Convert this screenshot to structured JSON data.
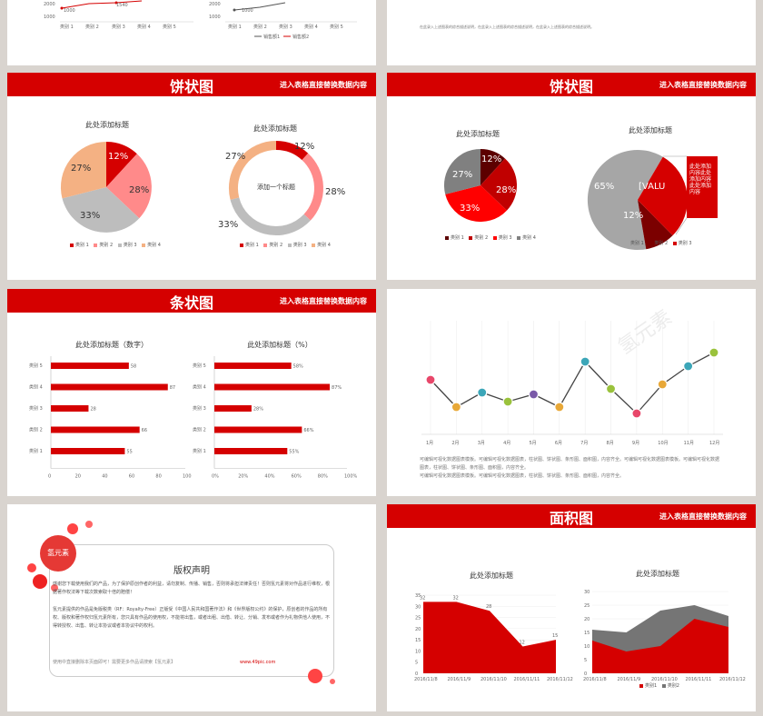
{
  "slides": {
    "pie_left": {
      "heading": "饼状图",
      "subtitle": "进入表格直接替换数据内容",
      "chart1_title": "此处添加标题",
      "chart2_title": "此处添加标题",
      "donut_center": "添加一个标题"
    },
    "pie_right": {
      "heading": "饼状图",
      "subtitle": "进入表格直接替换数据内容",
      "chart1_title": "此处添加标题",
      "chart2_title": "此处添加标题",
      "callout": "此处添加内容此处添加内容此处添加内容",
      "value_placeholder": "[VALU"
    },
    "bar_left": {
      "heading": "条状图",
      "subtitle": "进入表格直接替换数据内容",
      "chart1_title": "此处添加标题（数字）",
      "chart2_title": "此处添加标题（%）"
    },
    "line_right": {
      "caption1": "可编辑可视化数据图表模板。可编辑可视化数据图表，柱状图、饼状图、条形图、面积图，内容齐全。可编辑可视化数据图表模板。可编辑可视化数据图表，柱状图、饼状图、条形图、面积图，内容齐全。",
      "caption2": "可编辑可视化数据图表模板。可编辑可视化数据图表，柱状图、饼状图、条形图、面积图，内容齐全。"
    },
    "copyright": {
      "logo": "氢元素",
      "title": "版权声明",
      "p1": "感谢您下载使用我们的产品，为了保护原创作者的利益，请勿复制、传播、销售，否则将承担法律责任！否则氢元素将对作品进行维权，根据著作权法等下载次数索取十倍的赔偿！",
      "p2": "氢元素提供的作品是免版税类（RF：Royalty-Free）正版受《中国人民共和国著作法》和《世界版权公约》的保护，原创者的作品的所有权、版权和著作权归氢元素所有，您只具有作品的使用权，不能将出售，或者出租、出借、转让、分销、发布或者作为礼物供他人使用，不得转授权、出售、转让本协议或者本协议中的权利。",
      "footer": "使用中直接删除本页面即可！需要更多作品请搜索【氢元素】",
      "url": "www.49pic.com"
    },
    "area_right": {
      "heading": "面积图",
      "subtitle": "进入表格直接替换数据内容",
      "chart1_title": "此处添加标题",
      "chart2_title": "此处添加标题"
    },
    "top_left": {
      "legend": [
        "销售额1",
        "销售额2"
      ]
    },
    "top_right": {
      "caption": "在此录入上述图表的综合描述说明，在此录入上述图表的综合描述说明，在此录入上述图表的综合描述说明。"
    }
  },
  "watermark": "氢元素",
  "chart_data": [
    {
      "type": "line",
      "title": "",
      "categories": [
        "类别 1",
        "类别 2",
        "类别 3",
        "类别 4",
        "类别 5"
      ],
      "y_ticks": [
        "2000",
        "1000"
      ],
      "labels": [
        "1000",
        "1540"
      ]
    },
    {
      "type": "line",
      "title": "",
      "categories": [
        "类别 1",
        "类别 2",
        "类别 3",
        "类别 4",
        "类别 5"
      ],
      "y_ticks": [
        "2000",
        "1000"
      ],
      "labels": [
        "1000"
      ],
      "series": [
        {
          "name": "销售额1"
        },
        {
          "name": "销售额2"
        }
      ]
    },
    {
      "type": "pie",
      "title": "此处添加标题",
      "categories": [
        "类别 1",
        "类别 2",
        "类别 3",
        "类别 4"
      ],
      "values": [
        12,
        28,
        33,
        27
      ],
      "colors": [
        "#d50000",
        "#ff8a8a",
        "#bdbdbd",
        "#f4b183"
      ]
    },
    {
      "type": "pie",
      "title": "此处添加标题",
      "categories": [
        "类别 1",
        "类别 2",
        "类别 3",
        "类别 4"
      ],
      "values": [
        12,
        28,
        33,
        27
      ],
      "donut": true,
      "colors": [
        "#d50000",
        "#ff8a8a",
        "#bdbdbd",
        "#f4b183"
      ]
    },
    {
      "type": "pie",
      "title": "此处添加标题",
      "categories": [
        "类别 1",
        "类别 2",
        "类别 3",
        "类别 4"
      ],
      "values": [
        12,
        28,
        33,
        27
      ],
      "colors": [
        "#5c0000",
        "#c00000",
        "#ff0000",
        "#808080"
      ]
    },
    {
      "type": "pie",
      "title": "此处添加标题",
      "categories": [
        "类别 1",
        "类别 2",
        "类别 3"
      ],
      "values": [
        65,
        12,
        23
      ],
      "colors": [
        "#a6a6a6",
        "#7b0000",
        "#d50000"
      ],
      "labels": [
        "65%",
        "12%",
        "[VALU"
      ]
    },
    {
      "type": "bar",
      "title": "此处添加标题（数字）",
      "categories": [
        "类别 1",
        "类别 2",
        "类别 3",
        "类别 4",
        "类别 5"
      ],
      "values": [
        55,
        66,
        28,
        87,
        58
      ],
      "xlim": [
        0,
        100
      ],
      "x_ticks": [
        "0",
        "20",
        "40",
        "60",
        "80",
        "100"
      ]
    },
    {
      "type": "bar",
      "title": "此处添加标题（%）",
      "categories": [
        "类别 1",
        "类别 2",
        "类别 3",
        "类别 4",
        "类别 5"
      ],
      "values": [
        55,
        66,
        28,
        87,
        58
      ],
      "labels": [
        "55%",
        "66%",
        "28%",
        "87%",
        "58%"
      ],
      "xlim": [
        0,
        100
      ],
      "x_ticks": [
        "0%",
        "20%",
        "40%",
        "60%",
        "80%",
        "100%"
      ]
    },
    {
      "type": "line",
      "categories": [
        "1月",
        "2月",
        "3月",
        "4月",
        "5月",
        "6月",
        "7月",
        "8月",
        "9月",
        "10月",
        "11月",
        "12月"
      ],
      "values": [
        6,
        3,
        4.6,
        3.6,
        4.4,
        3,
        8,
        5,
        2.3,
        5.5,
        7.5,
        9
      ],
      "ylim": [
        0,
        12
      ],
      "point_colors": [
        "#e8476a",
        "#e8a838",
        "#3ca6b8",
        "#9ac23c",
        "#7a5aa8",
        "#e8a838",
        "#3ca6b8",
        "#9ac23c",
        "#e8476a",
        "#e8a838",
        "#3ca6b8",
        "#9ac23c"
      ]
    },
    {
      "type": "area",
      "title": "此处添加标题",
      "categories": [
        "2016/11/8",
        "2016/11/9",
        "2016/11/10",
        "2016/11/11",
        "2016/11/12"
      ],
      "values": [
        32,
        32,
        28,
        12,
        15
      ],
      "ylim": [
        0,
        35
      ],
      "y_ticks": [
        0,
        5,
        10,
        15,
        20,
        25,
        30,
        35
      ]
    },
    {
      "type": "area",
      "title": "此处添加标题",
      "categories": [
        "2016/11/8",
        "2016/11/9",
        "2016/11/10",
        "2016/11/11",
        "2016/11/12"
      ],
      "series": [
        {
          "name": "类别1",
          "values": [
            12,
            8,
            10,
            20,
            17
          ]
        },
        {
          "name": "类别2",
          "values": [
            4,
            7,
            13,
            5,
            4
          ]
        }
      ],
      "ylim": [
        0,
        30
      ],
      "y_ticks": [
        0,
        5,
        10,
        15,
        20,
        25,
        30
      ]
    }
  ]
}
